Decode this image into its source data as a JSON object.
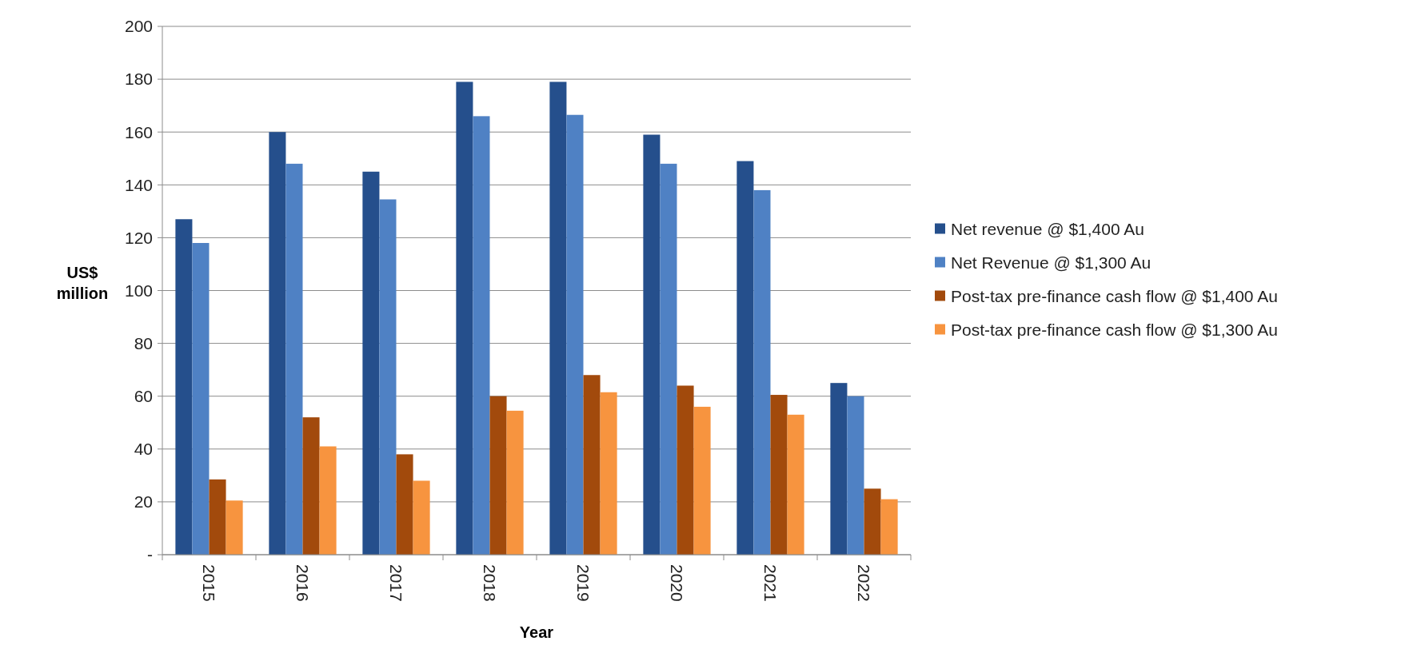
{
  "chart_data": {
    "type": "bar",
    "xlabel": "Year",
    "ylabel": "US$ million",
    "categories": [
      "2015",
      "2016",
      "2017",
      "2018",
      "2019",
      "2020",
      "2021",
      "2022"
    ],
    "series": [
      {
        "name": "Net revenue @ $1,400 Au",
        "color": "#254f8c",
        "values": [
          127,
          160,
          145,
          179,
          179,
          159,
          149,
          65
        ]
      },
      {
        "name": "Net Revenue @ $1,300 Au",
        "color": "#4f81c4",
        "values": [
          118,
          148,
          134.5,
          166,
          166.5,
          148,
          138,
          60
        ]
      },
      {
        "name": "Post-tax pre-finance cash flow @ $1,400 Au",
        "color": "#a24a0c",
        "values": [
          28.5,
          52,
          38,
          60,
          68,
          64,
          60.5,
          25
        ]
      },
      {
        "name": "Post-tax pre-finance cash flow @ $1,300 Au",
        "color": "#f7943f",
        "values": [
          20.5,
          41,
          28,
          54.5,
          61.5,
          56,
          53,
          21
        ]
      }
    ],
    "ylim": [
      0,
      200
    ],
    "yticks": [
      {
        "value": 0,
        "label": "-"
      },
      20,
      40,
      60,
      80,
      100,
      120,
      140,
      160,
      180,
      200
    ],
    "grid": "y",
    "legend": "right"
  }
}
